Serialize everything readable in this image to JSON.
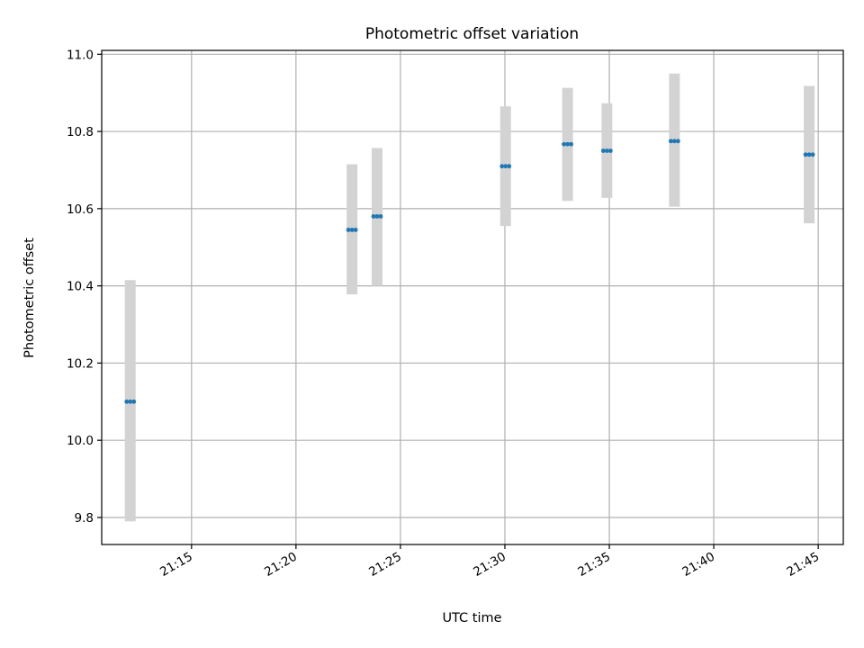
{
  "chart_data": {
    "type": "scatter",
    "title": "Photometric offset variation",
    "xlabel": "UTC time",
    "ylabel": "Photometric offset",
    "x_unit": "time of day (HH:MM)",
    "xlim": [
      "21:10:42",
      "21:46:12"
    ],
    "ylim": [
      9.73,
      11.01
    ],
    "x_ticks": [
      "21:15",
      "21:20",
      "21:25",
      "21:30",
      "21:35",
      "21:40",
      "21:45"
    ],
    "y_ticks": [
      9.8,
      10.0,
      10.2,
      10.4,
      10.6,
      10.8,
      11.0
    ],
    "y_tick_labels": [
      "9.8",
      "10.0",
      "10.2",
      "10.4",
      "10.6",
      "10.8",
      "11.0"
    ],
    "grid": true,
    "legend": "none",
    "points": [
      {
        "x": "21:12:04",
        "y": 10.1,
        "err_low": 9.79,
        "err_high": 10.415
      },
      {
        "x": "21:22:41",
        "y": 10.545,
        "err_low": 10.378,
        "err_high": 10.715
      },
      {
        "x": "21:23:53",
        "y": 10.58,
        "err_low": 10.4,
        "err_high": 10.757
      },
      {
        "x": "21:30:02",
        "y": 10.71,
        "err_low": 10.555,
        "err_high": 10.865
      },
      {
        "x": "21:33:00",
        "y": 10.767,
        "err_low": 10.62,
        "err_high": 10.913
      },
      {
        "x": "21:34:53",
        "y": 10.75,
        "err_low": 10.628,
        "err_high": 10.873
      },
      {
        "x": "21:38:07",
        "y": 10.775,
        "err_low": 10.605,
        "err_high": 10.95
      },
      {
        "x": "21:44:34",
        "y": 10.74,
        "err_low": 10.562,
        "err_high": 10.918
      }
    ],
    "colors": {
      "marker": "#1f77b4",
      "error_bar": "#d3d3d3",
      "grid": "#b0b0b0",
      "axes": "#000000"
    }
  }
}
